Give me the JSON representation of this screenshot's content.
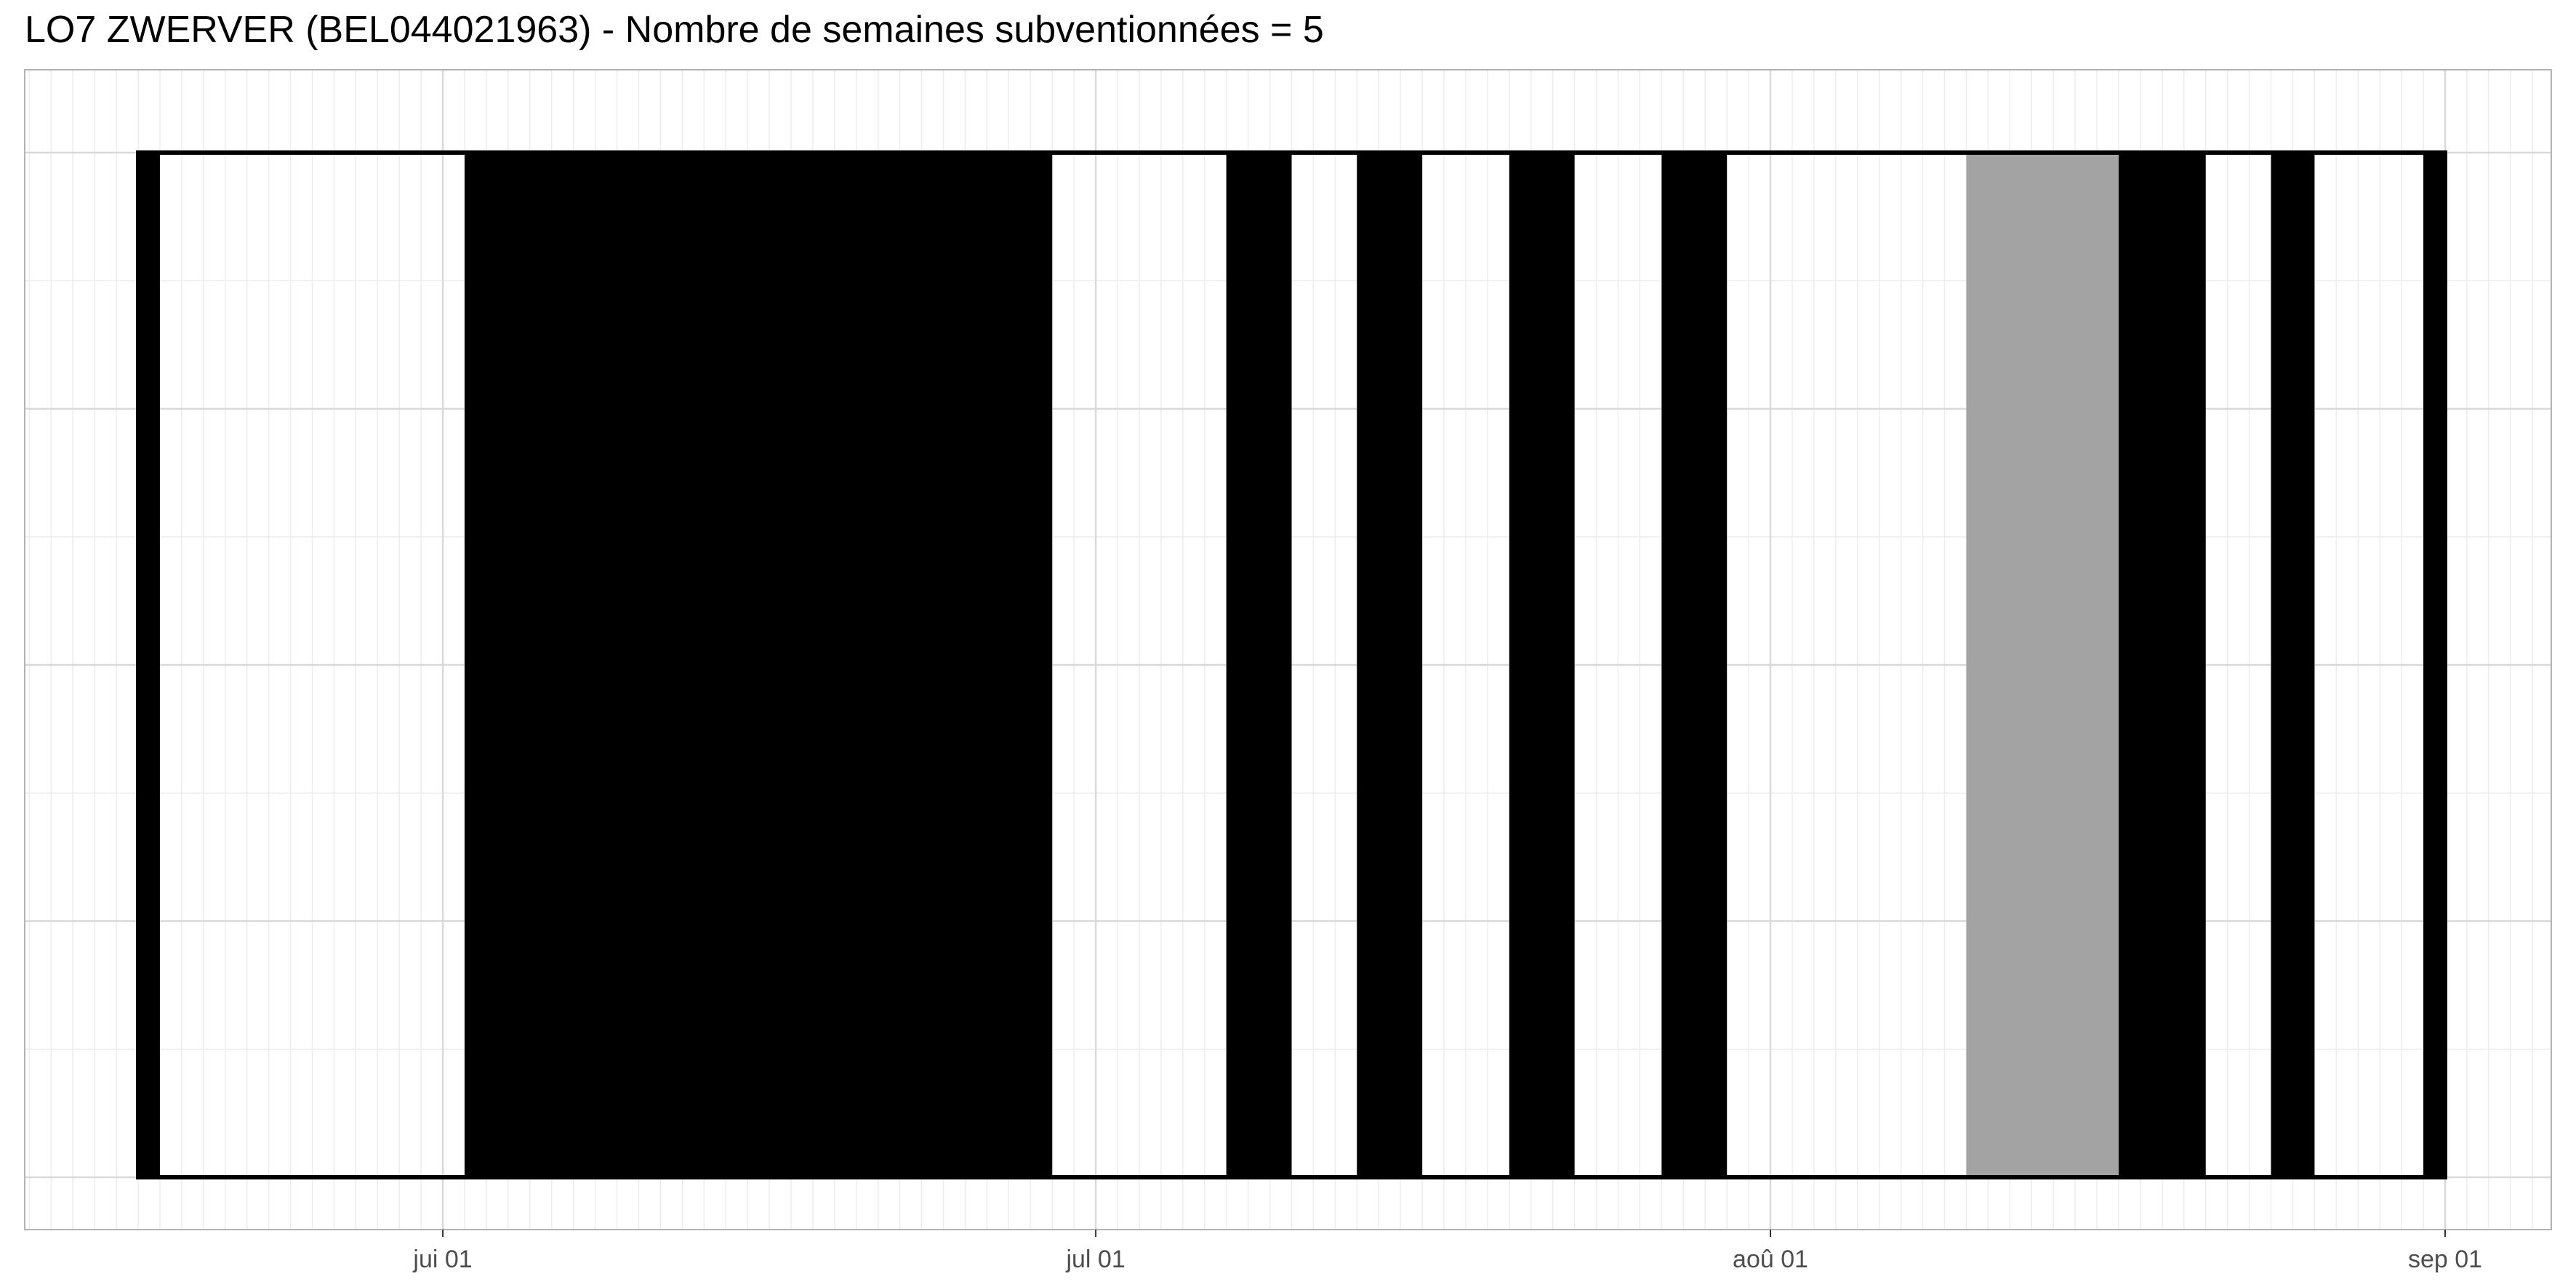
{
  "chart_data": {
    "type": "bar",
    "title": "LO7 ZWERVER (BEL044021963) - Nombre de semaines subventionnées = 5",
    "xlabel": "",
    "ylabel": "",
    "x_axis": {
      "type": "date",
      "range": [
        "2024-05-12",
        "2024-09-07"
      ],
      "major_ticks": [
        {
          "date": "2024-06-01",
          "label": "jui 01"
        },
        {
          "date": "2024-07-01",
          "label": "jul 01"
        },
        {
          "date": "2024-08-01",
          "label": "aoû 01"
        },
        {
          "date": "2024-09-01",
          "label": "sep 01"
        }
      ],
      "minor_gridlines": "daily"
    },
    "y_axis": {
      "labels": false
    },
    "grid": true,
    "legend": "none",
    "period": {
      "start": "2024-05-18",
      "end": "2024-09-01"
    },
    "series": [
      {
        "state": "black",
        "color": "#000000",
        "start": "2024-05-18",
        "end": "2024-05-19"
      },
      {
        "state": "black",
        "color": "#000000",
        "start": "2024-06-02",
        "end": "2024-06-29"
      },
      {
        "state": "black",
        "color": "#000000",
        "start": "2024-07-07",
        "end": "2024-07-10"
      },
      {
        "state": "black",
        "color": "#000000",
        "start": "2024-07-13",
        "end": "2024-07-16"
      },
      {
        "state": "black",
        "color": "#000000",
        "start": "2024-07-20",
        "end": "2024-07-23"
      },
      {
        "state": "black",
        "color": "#000000",
        "start": "2024-07-27",
        "end": "2024-07-30"
      },
      {
        "state": "gray",
        "color": "#a3a3a3",
        "start": "2024-08-10",
        "end": "2024-08-17"
      },
      {
        "state": "black",
        "color": "#000000",
        "start": "2024-08-17",
        "end": "2024-08-21"
      },
      {
        "state": "black",
        "color": "#000000",
        "start": "2024-08-24",
        "end": "2024-08-26"
      },
      {
        "state": "black",
        "color": "#000000",
        "start": "2024-08-31",
        "end": "2024-09-01"
      }
    ],
    "colors": {
      "background": "#ffffff",
      "panel_border": "#b3b3b3",
      "grid_major": "#d9d9d9",
      "grid_minor": "#ececec",
      "outline": "#000000"
    }
  }
}
